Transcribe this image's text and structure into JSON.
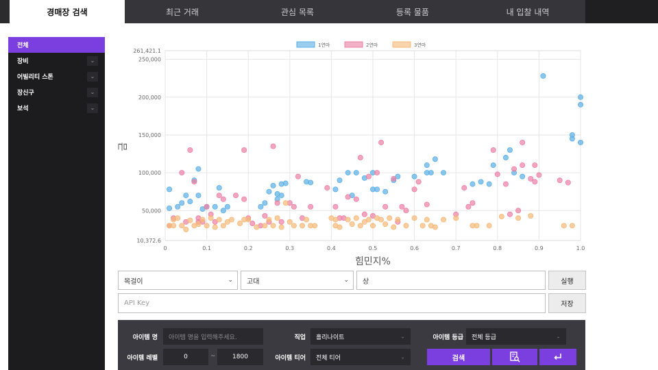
{
  "tabs": [
    {
      "label": "경매장 검색",
      "active": true
    },
    {
      "label": "최근 거래",
      "active": false
    },
    {
      "label": "관심 목록",
      "active": false
    },
    {
      "label": "등록 물품",
      "active": false
    },
    {
      "label": "내 입찰 내역",
      "active": false
    }
  ],
  "sidebar": {
    "items": [
      {
        "label": "전체",
        "active": true,
        "expandable": false
      },
      {
        "label": "장비",
        "active": false,
        "expandable": true
      },
      {
        "label": "어빌리티 스톤",
        "active": false,
        "expandable": true
      },
      {
        "label": "장신구",
        "active": false,
        "expandable": true
      },
      {
        "label": "보석",
        "active": false,
        "expandable": true
      }
    ],
    "chevron_icon": "chevron-down-icon"
  },
  "chart_data": {
    "type": "scatter",
    "xlabel": "힘민지%",
    "ylabel": "금",
    "xlim": [
      0,
      1.0
    ],
    "ylim": [
      10372.6,
      261421.1
    ],
    "ylim_labels": [
      "10,372.6",
      "261,421.1"
    ],
    "x_ticks": [
      "0",
      "0.1",
      "0.2",
      "0.3",
      "0.4",
      "0.5",
      "0.6",
      "0.7",
      "0.8",
      "0.9",
      "1.0"
    ],
    "y_ticks": [
      "50,000",
      "100,000",
      "150,000",
      "200,000",
      "250,000"
    ],
    "grid": true,
    "legend_position": "top-center",
    "series": [
      {
        "name": "1연마",
        "color": "#5aaee6",
        "points": [
          [
            0.01,
            78000
          ],
          [
            0.01,
            53000
          ],
          [
            0.03,
            55000
          ],
          [
            0.04,
            60000
          ],
          [
            0.05,
            70000
          ],
          [
            0.06,
            62000
          ],
          [
            0.07,
            90000
          ],
          [
            0.08,
            105000
          ],
          [
            0.08,
            70000
          ],
          [
            0.09,
            52000
          ],
          [
            0.1,
            55000
          ],
          [
            0.12,
            55000
          ],
          [
            0.13,
            80000
          ],
          [
            0.14,
            50000
          ],
          [
            0.15,
            55000
          ],
          [
            0.23,
            55000
          ],
          [
            0.24,
            60000
          ],
          [
            0.25,
            75000
          ],
          [
            0.26,
            83000
          ],
          [
            0.27,
            65000
          ],
          [
            0.27,
            72000
          ],
          [
            0.28,
            70000
          ],
          [
            0.28,
            85000
          ],
          [
            0.29,
            86000
          ],
          [
            0.34,
            88000
          ],
          [
            0.35,
            87000
          ],
          [
            0.41,
            78000
          ],
          [
            0.42,
            90000
          ],
          [
            0.44,
            100000
          ],
          [
            0.45,
            70000
          ],
          [
            0.46,
            100000
          ],
          [
            0.48,
            93000
          ],
          [
            0.5,
            100000
          ],
          [
            0.5,
            78000
          ],
          [
            0.51,
            78000
          ],
          [
            0.53,
            75000
          ],
          [
            0.55,
            90000
          ],
          [
            0.56,
            95000
          ],
          [
            0.6,
            95000
          ],
          [
            0.63,
            110000
          ],
          [
            0.63,
            100000
          ],
          [
            0.64,
            100000
          ],
          [
            0.65,
            118000
          ],
          [
            0.67,
            100000
          ],
          [
            0.74,
            85000
          ],
          [
            0.76,
            88000
          ],
          [
            0.78,
            85000
          ],
          [
            0.79,
            110000
          ],
          [
            0.82,
            120000
          ],
          [
            0.83,
            130000
          ],
          [
            0.84,
            100000
          ],
          [
            0.86,
            95000
          ],
          [
            0.91,
            228000
          ],
          [
            0.98,
            150000
          ],
          [
            0.98,
            145000
          ],
          [
            1.0,
            200000
          ],
          [
            1.0,
            190000
          ],
          [
            1.0,
            140000
          ]
        ]
      },
      {
        "name": "2연마",
        "color": "#ec7fa3",
        "points": [
          [
            0.01,
            30000
          ],
          [
            0.02,
            40000
          ],
          [
            0.04,
            100000
          ],
          [
            0.05,
            35000
          ],
          [
            0.06,
            130000
          ],
          [
            0.07,
            88000
          ],
          [
            0.08,
            35000
          ],
          [
            0.08,
            40000
          ],
          [
            0.09,
            35000
          ],
          [
            0.1,
            55000
          ],
          [
            0.11,
            45000
          ],
          [
            0.12,
            35000
          ],
          [
            0.13,
            70000
          ],
          [
            0.14,
            65000
          ],
          [
            0.17,
            70000
          ],
          [
            0.19,
            130000
          ],
          [
            0.19,
            65000
          ],
          [
            0.2,
            40000
          ],
          [
            0.21,
            33000
          ],
          [
            0.23,
            30000
          ],
          [
            0.24,
            43000
          ],
          [
            0.25,
            35000
          ],
          [
            0.26,
            135000
          ],
          [
            0.27,
            60000
          ],
          [
            0.28,
            35000
          ],
          [
            0.3,
            60000
          ],
          [
            0.31,
            55000
          ],
          [
            0.32,
            95000
          ],
          [
            0.33,
            40000
          ],
          [
            0.35,
            55000
          ],
          [
            0.39,
            80000
          ],
          [
            0.41,
            55000
          ],
          [
            0.42,
            40000
          ],
          [
            0.43,
            40000
          ],
          [
            0.44,
            68000
          ],
          [
            0.46,
            65000
          ],
          [
            0.47,
            120000
          ],
          [
            0.48,
            45000
          ],
          [
            0.49,
            95000
          ],
          [
            0.5,
            43000
          ],
          [
            0.51,
            100000
          ],
          [
            0.52,
            140000
          ],
          [
            0.53,
            55000
          ],
          [
            0.55,
            92000
          ],
          [
            0.56,
            35000
          ],
          [
            0.57,
            55000
          ],
          [
            0.58,
            50000
          ],
          [
            0.6,
            78000
          ],
          [
            0.61,
            88000
          ],
          [
            0.63,
            58000
          ],
          [
            0.7,
            45000
          ],
          [
            0.72,
            80000
          ],
          [
            0.73,
            55000
          ],
          [
            0.74,
            60000
          ],
          [
            0.79,
            130000
          ],
          [
            0.8,
            98000
          ],
          [
            0.82,
            85000
          ],
          [
            0.83,
            45000
          ],
          [
            0.84,
            105000
          ],
          [
            0.85,
            50000
          ],
          [
            0.86,
            110000
          ],
          [
            0.86,
            140000
          ],
          [
            0.88,
            92000
          ],
          [
            0.89,
            88000
          ],
          [
            0.89,
            110000
          ],
          [
            0.9,
            97000
          ],
          [
            0.95,
            90000
          ],
          [
            0.97,
            87000
          ]
        ]
      },
      {
        "name": "3연마",
        "color": "#f5b877",
        "points": [
          [
            0.01,
            30000
          ],
          [
            0.02,
            38000
          ],
          [
            0.02,
            30000
          ],
          [
            0.03,
            40000
          ],
          [
            0.04,
            30000
          ],
          [
            0.05,
            25000
          ],
          [
            0.06,
            37000
          ],
          [
            0.07,
            30000
          ],
          [
            0.08,
            32000
          ],
          [
            0.09,
            38000
          ],
          [
            0.1,
            30000
          ],
          [
            0.11,
            40000
          ],
          [
            0.12,
            28000
          ],
          [
            0.13,
            38000
          ],
          [
            0.14,
            30000
          ],
          [
            0.15,
            35000
          ],
          [
            0.16,
            38000
          ],
          [
            0.18,
            33000
          ],
          [
            0.19,
            38000
          ],
          [
            0.2,
            38000
          ],
          [
            0.22,
            28000
          ],
          [
            0.24,
            30000
          ],
          [
            0.25,
            38000
          ],
          [
            0.26,
            30000
          ],
          [
            0.27,
            40000
          ],
          [
            0.28,
            28000
          ],
          [
            0.29,
            60000
          ],
          [
            0.3,
            35000
          ],
          [
            0.31,
            30000
          ],
          [
            0.33,
            30000
          ],
          [
            0.34,
            38000
          ],
          [
            0.35,
            30000
          ],
          [
            0.36,
            30000
          ],
          [
            0.4,
            40000
          ],
          [
            0.41,
            38000
          ],
          [
            0.41,
            30000
          ],
          [
            0.42,
            28000
          ],
          [
            0.44,
            38000
          ],
          [
            0.45,
            32000
          ],
          [
            0.46,
            40000
          ],
          [
            0.47,
            30000
          ],
          [
            0.48,
            35000
          ],
          [
            0.49,
            38000
          ],
          [
            0.5,
            30000
          ],
          [
            0.51,
            40000
          ],
          [
            0.52,
            38000
          ],
          [
            0.53,
            32000
          ],
          [
            0.54,
            40000
          ],
          [
            0.55,
            28000
          ],
          [
            0.56,
            38000
          ],
          [
            0.58,
            30000
          ],
          [
            0.6,
            40000
          ],
          [
            0.62,
            30000
          ],
          [
            0.63,
            38000
          ],
          [
            0.64,
            30000
          ],
          [
            0.65,
            28000
          ],
          [
            0.67,
            38000
          ],
          [
            0.7,
            40000
          ],
          [
            0.74,
            30000
          ],
          [
            0.75,
            30000
          ],
          [
            0.78,
            30000
          ],
          [
            0.81,
            42000
          ],
          [
            0.85,
            40000
          ],
          [
            0.88,
            43000
          ],
          [
            0.96,
            30000
          ],
          [
            0.98,
            30000
          ]
        ]
      }
    ]
  },
  "search": {
    "category_select": "목걸이",
    "grade_select": "고대",
    "quality_field": "상",
    "run_button": "실행",
    "api_key_placeholder": "API Key",
    "save_button": "저장"
  },
  "panel": {
    "item_name_label": "아이템 명",
    "item_name_placeholder": "아이템 명을 입력해주세요.",
    "class_label": "직업",
    "class_value": "홀리나이트",
    "item_grade_label": "아이템 등급",
    "item_grade_value": "전체 등급",
    "item_level_label": "아이템 레벨",
    "level_min": "0",
    "level_tilde": "~",
    "level_max": "1800",
    "item_tier_label": "아이템 티어",
    "item_tier_value": "전체 티어",
    "search_button": "검색",
    "detail_search_icon": "detail-search-icon",
    "reset_icon": "return-arrow-icon"
  }
}
